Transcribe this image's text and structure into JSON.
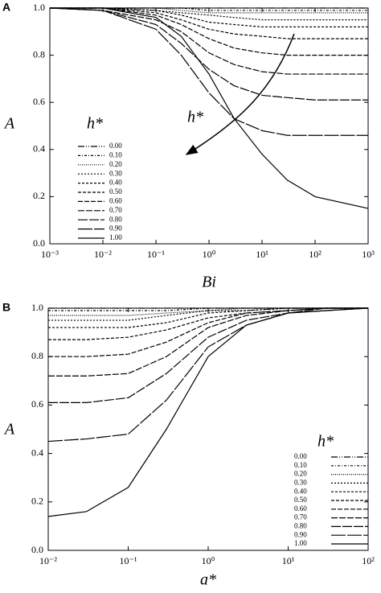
{
  "chart_data": [
    {
      "type": "line",
      "panel": "A",
      "xlabel": "Bi",
      "ylabel": "A",
      "legend_title": "h*",
      "annotation": "h*",
      "log_x": true,
      "xlim": [
        0.001,
        1000
      ],
      "ylim": [
        0,
        1
      ],
      "xticks": [
        {
          "value": 0.001,
          "label": "10⁻³"
        },
        {
          "value": 0.01,
          "label": "10⁻²"
        },
        {
          "value": 0.1,
          "label": "10⁻¹"
        },
        {
          "value": 1,
          "label": "10⁰"
        },
        {
          "value": 10,
          "label": "10¹"
        },
        {
          "value": 100,
          "label": "10²"
        },
        {
          "value": 1000,
          "label": "10³"
        }
      ],
      "yticks": [
        {
          "value": 0,
          "label": "0.0"
        },
        0.2,
        0.4,
        0.6,
        0.8,
        {
          "value": 1,
          "label": "1.0"
        }
      ],
      "x": [
        0.001,
        0.01,
        0.1,
        0.3,
        1,
        3,
        10,
        30,
        100,
        1000
      ],
      "series": [
        {
          "name": "0.00",
          "color": "#000",
          "dash": "8 2 1 2 1 2",
          "values": [
            1,
            1,
            1,
            1,
            1,
            1,
            1,
            1,
            1,
            1
          ]
        },
        {
          "name": "0.10",
          "color": "#000",
          "dash": "3 2 1 2",
          "values": [
            1,
            1,
            1,
            1,
            0.99,
            0.99,
            0.99,
            0.99,
            0.99,
            0.99
          ]
        },
        {
          "name": "0.20",
          "color": "#000",
          "dash": "1 1.5",
          "values": [
            1,
            1,
            1,
            0.99,
            0.98,
            0.98,
            0.98,
            0.98,
            0.98,
            0.98
          ]
        },
        {
          "name": "0.30",
          "color": "#000",
          "dash": "2 2",
          "values": [
            1,
            1,
            0.99,
            0.98,
            0.97,
            0.96,
            0.95,
            0.95,
            0.95,
            0.95
          ]
        },
        {
          "name": "0.40",
          "color": "#000",
          "dash": "3 2",
          "values": [
            1,
            1,
            0.99,
            0.97,
            0.94,
            0.93,
            0.92,
            0.92,
            0.92,
            0.92
          ]
        },
        {
          "name": "0.50",
          "color": "#000",
          "dash": "4 2",
          "values": [
            1,
            1,
            0.98,
            0.95,
            0.91,
            0.89,
            0.88,
            0.87,
            0.87,
            0.87
          ]
        },
        {
          "name": "0.60",
          "color": "#000",
          "dash": "6 2",
          "values": [
            1,
            1,
            0.97,
            0.93,
            0.87,
            0.83,
            0.81,
            0.8,
            0.8,
            0.8
          ]
        },
        {
          "name": "0.70",
          "color": "#000",
          "dash": "8 2",
          "values": [
            1,
            0.99,
            0.95,
            0.9,
            0.81,
            0.76,
            0.73,
            0.72,
            0.72,
            0.72
          ]
        },
        {
          "name": "0.80",
          "color": "#000",
          "dash": "12 2",
          "values": [
            1,
            0.99,
            0.93,
            0.85,
            0.74,
            0.67,
            0.63,
            0.62,
            0.61,
            0.61
          ]
        },
        {
          "name": "0.90",
          "color": "#000",
          "dash": "18 2",
          "values": [
            1,
            0.99,
            0.91,
            0.8,
            0.64,
            0.53,
            0.48,
            0.46,
            0.46,
            0.46
          ]
        },
        {
          "name": "1.00",
          "color": "#000",
          "dash": "none",
          "values": [
            1,
            1,
            0.96,
            0.88,
            0.72,
            0.53,
            0.38,
            0.27,
            0.2,
            0.15
          ]
        }
      ]
    },
    {
      "type": "line",
      "panel": "B",
      "xlabel": "a*",
      "ylabel": "A",
      "legend_title": "h*",
      "log_x": true,
      "xlim": [
        0.01,
        100
      ],
      "ylim": [
        0,
        1
      ],
      "xticks": [
        {
          "value": 0.01,
          "label": "10⁻²"
        },
        {
          "value": 0.1,
          "label": "10⁻¹"
        },
        {
          "value": 1,
          "label": "10⁰"
        },
        {
          "value": 10,
          "label": "10¹"
        },
        {
          "value": 100,
          "label": "10²"
        }
      ],
      "yticks": [
        {
          "value": 0,
          "label": "0.0"
        },
        0.2,
        0.4,
        0.6,
        0.8,
        {
          "value": 1,
          "label": "1.0"
        }
      ],
      "x": [
        0.01,
        0.03,
        0.1,
        0.3,
        1,
        3,
        10,
        30,
        100
      ],
      "series": [
        {
          "name": "0.00",
          "color": "#000",
          "dash": "8 2 1 2 1 2",
          "values": [
            1,
            1,
            1,
            1,
            1,
            1,
            1,
            1,
            1
          ]
        },
        {
          "name": "0.10",
          "color": "#000",
          "dash": "3 2 1 2",
          "values": [
            0.99,
            0.99,
            0.99,
            0.99,
            1,
            1,
            1,
            1,
            1
          ]
        },
        {
          "name": "0.20",
          "color": "#000",
          "dash": "1 1.5",
          "values": [
            0.97,
            0.97,
            0.97,
            0.98,
            0.99,
            1,
            1,
            1,
            1
          ]
        },
        {
          "name": "0.30",
          "color": "#000",
          "dash": "2 2",
          "values": [
            0.95,
            0.95,
            0.95,
            0.97,
            0.99,
            0.99,
            1,
            1,
            1
          ]
        },
        {
          "name": "0.40",
          "color": "#000",
          "dash": "3 2",
          "values": [
            0.92,
            0.92,
            0.92,
            0.94,
            0.98,
            0.99,
            1,
            1,
            1
          ]
        },
        {
          "name": "0.50",
          "color": "#000",
          "dash": "4 2",
          "values": [
            0.87,
            0.87,
            0.88,
            0.91,
            0.96,
            0.98,
            0.99,
            1,
            1
          ]
        },
        {
          "name": "0.60",
          "color": "#000",
          "dash": "6 2",
          "values": [
            0.8,
            0.8,
            0.81,
            0.86,
            0.94,
            0.98,
            0.99,
            1,
            1
          ]
        },
        {
          "name": "0.70",
          "color": "#000",
          "dash": "8 2",
          "values": [
            0.72,
            0.72,
            0.73,
            0.8,
            0.92,
            0.97,
            0.99,
            1,
            1
          ]
        },
        {
          "name": "0.80",
          "color": "#000",
          "dash": "12 2",
          "values": [
            0.61,
            0.61,
            0.63,
            0.73,
            0.88,
            0.95,
            0.98,
            1,
            1
          ]
        },
        {
          "name": "0.90",
          "color": "#000",
          "dash": "18 2",
          "values": [
            0.45,
            0.46,
            0.48,
            0.62,
            0.84,
            0.93,
            0.98,
            0.99,
            1
          ]
        },
        {
          "name": "1.00",
          "color": "#000",
          "dash": "none",
          "values": [
            0.14,
            0.16,
            0.26,
            0.5,
            0.8,
            0.93,
            0.98,
            0.99,
            1
          ]
        }
      ]
    }
  ]
}
